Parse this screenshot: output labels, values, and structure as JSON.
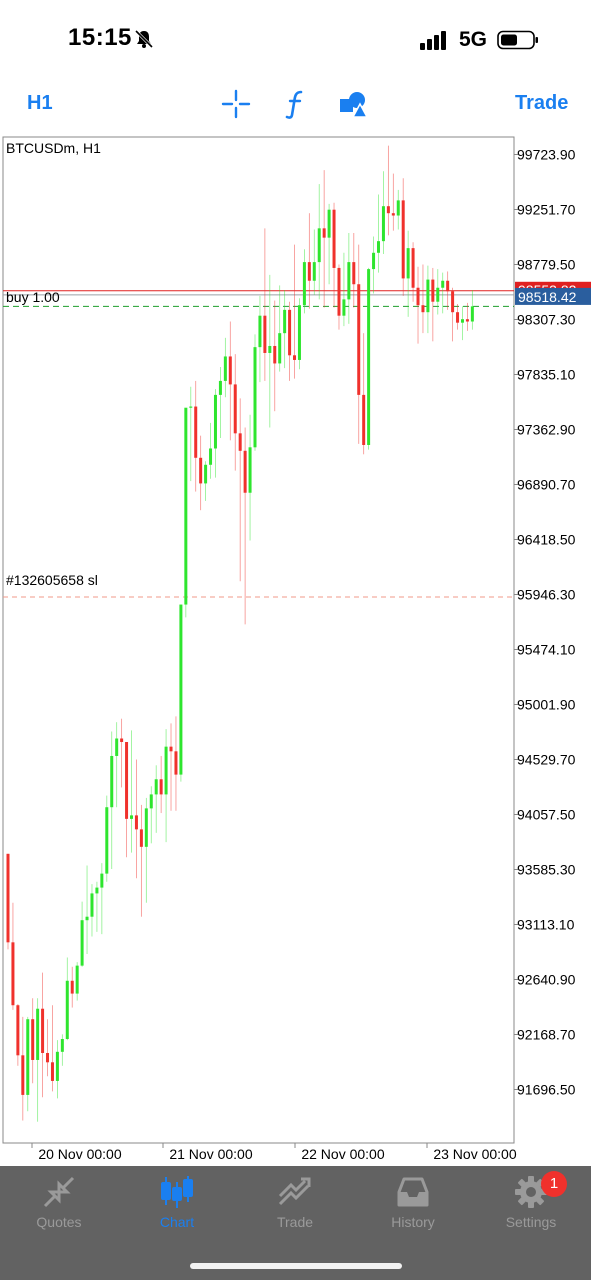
{
  "status_bar": {
    "time": "15:15",
    "network": "5G"
  },
  "toolbar": {
    "timeframe": "H1",
    "trade_label": "Trade",
    "tools": [
      "crosshair-icon",
      "indicator-icon",
      "objects-icon"
    ]
  },
  "chart": {
    "symbol_label": "BTCUSDm, H1",
    "bid_label": "98518.42",
    "ask_label": "98553.82",
    "position_label": "buy 1.00",
    "sl_label": "#132605658 sl",
    "price_ticks": [
      "99723.90",
      "99251.70",
      "98779.50",
      "98307.30",
      "97835.10",
      "97362.90",
      "96890.70",
      "96418.50",
      "95946.30",
      "95474.10",
      "95001.90",
      "94529.70",
      "94057.50",
      "93585.30",
      "93113.10",
      "92640.90",
      "92168.70",
      "91696.50"
    ],
    "time_ticks": [
      "20 Nov 00:00",
      "21 Nov 00:00",
      "22 Nov 00:00",
      "23 Nov 00:00"
    ]
  },
  "chart_data": {
    "type": "candlestick",
    "symbol": "BTCUSDm",
    "timeframe": "H1",
    "x_range": [
      "19 Nov 17:00",
      "23 Nov 05:00"
    ],
    "y_range": [
      91250,
      100050
    ],
    "levels": {
      "bid": 98518.42,
      "ask": 98553.82,
      "position_open_buy": 98420.0,
      "stop_loss": 95925.0
    },
    "ohlc": [
      {
        "o": 93720,
        "h": 93720,
        "l": 92900,
        "c": 92960
      },
      {
        "o": 92960,
        "h": 93300,
        "l": 92380,
        "c": 92420
      },
      {
        "o": 92420,
        "h": 92430,
        "l": 91900,
        "c": 91990
      },
      {
        "o": 91990,
        "h": 92320,
        "l": 91430,
        "c": 91650
      },
      {
        "o": 91650,
        "h": 92320,
        "l": 91510,
        "c": 92300
      },
      {
        "o": 92300,
        "h": 92480,
        "l": 91750,
        "c": 91950
      },
      {
        "o": 91950,
        "h": 92480,
        "l": 91420,
        "c": 92390
      },
      {
        "o": 92390,
        "h": 92700,
        "l": 91630,
        "c": 92010
      },
      {
        "o": 92010,
        "h": 92300,
        "l": 91810,
        "c": 91930
      },
      {
        "o": 91930,
        "h": 92420,
        "l": 91680,
        "c": 91770
      },
      {
        "o": 91770,
        "h": 92120,
        "l": 91620,
        "c": 92020
      },
      {
        "o": 92020,
        "h": 92170,
        "l": 91900,
        "c": 92130
      },
      {
        "o": 92130,
        "h": 92830,
        "l": 92120,
        "c": 92630
      },
      {
        "o": 92630,
        "h": 92750,
        "l": 92400,
        "c": 92520
      },
      {
        "o": 92520,
        "h": 92790,
        "l": 92460,
        "c": 92760
      },
      {
        "o": 92760,
        "h": 93310,
        "l": 92750,
        "c": 93150
      },
      {
        "o": 93150,
        "h": 93620,
        "l": 92860,
        "c": 93180
      },
      {
        "o": 93180,
        "h": 93460,
        "l": 93010,
        "c": 93380
      },
      {
        "o": 93380,
        "h": 93480,
        "l": 93050,
        "c": 93430
      },
      {
        "o": 93430,
        "h": 93640,
        "l": 93030,
        "c": 93550
      },
      {
        "o": 93550,
        "h": 94220,
        "l": 93480,
        "c": 94120
      },
      {
        "o": 94120,
        "h": 94770,
        "l": 93590,
        "c": 94560
      },
      {
        "o": 94560,
        "h": 94850,
        "l": 94120,
        "c": 94710
      },
      {
        "o": 94710,
        "h": 94880,
        "l": 94290,
        "c": 94680
      },
      {
        "o": 94680,
        "h": 94680,
        "l": 93690,
        "c": 94020
      },
      {
        "o": 94020,
        "h": 94780,
        "l": 93730,
        "c": 94050
      },
      {
        "o": 94050,
        "h": 94530,
        "l": 93510,
        "c": 93930
      },
      {
        "o": 93930,
        "h": 94140,
        "l": 93180,
        "c": 93780
      },
      {
        "o": 93780,
        "h": 94200,
        "l": 93300,
        "c": 94110
      },
      {
        "o": 94110,
        "h": 94300,
        "l": 93810,
        "c": 94230
      },
      {
        "o": 94230,
        "h": 94480,
        "l": 93900,
        "c": 94360
      },
      {
        "o": 94360,
        "h": 94560,
        "l": 94070,
        "c": 94230
      },
      {
        "o": 94230,
        "h": 94790,
        "l": 93820,
        "c": 94640
      },
      {
        "o": 94640,
        "h": 94840,
        "l": 94090,
        "c": 94600
      },
      {
        "o": 94600,
        "h": 94900,
        "l": 94090,
        "c": 94400
      },
      {
        "o": 94400,
        "h": 95840,
        "l": 94340,
        "c": 95860
      },
      {
        "o": 95860,
        "h": 97520,
        "l": 95750,
        "c": 97550
      },
      {
        "o": 97550,
        "h": 97730,
        "l": 96920,
        "c": 97560
      },
      {
        "o": 97560,
        "h": 97780,
        "l": 96830,
        "c": 97120
      },
      {
        "o": 97120,
        "h": 97310,
        "l": 96670,
        "c": 96900
      },
      {
        "o": 96900,
        "h": 97090,
        "l": 96750,
        "c": 97060
      },
      {
        "o": 97060,
        "h": 97420,
        "l": 96940,
        "c": 97200
      },
      {
        "o": 97200,
        "h": 97710,
        "l": 96950,
        "c": 97660
      },
      {
        "o": 97660,
        "h": 97900,
        "l": 97290,
        "c": 97780
      },
      {
        "o": 97780,
        "h": 98150,
        "l": 97640,
        "c": 97990
      },
      {
        "o": 97990,
        "h": 98290,
        "l": 97270,
        "c": 97750
      },
      {
        "o": 97750,
        "h": 98010,
        "l": 97010,
        "c": 97330
      },
      {
        "o": 97330,
        "h": 97630,
        "l": 96060,
        "c": 97180
      },
      {
        "o": 97180,
        "h": 97380,
        "l": 95690,
        "c": 96820
      },
      {
        "o": 96820,
        "h": 97490,
        "l": 96410,
        "c": 97210
      },
      {
        "o": 97210,
        "h": 98180,
        "l": 97180,
        "c": 98070
      },
      {
        "o": 98070,
        "h": 98510,
        "l": 97770,
        "c": 98340
      },
      {
        "o": 98340,
        "h": 99090,
        "l": 97780,
        "c": 98020
      },
      {
        "o": 98020,
        "h": 98690,
        "l": 97380,
        "c": 98080
      },
      {
        "o": 98080,
        "h": 98470,
        "l": 97520,
        "c": 97930
      },
      {
        "o": 97930,
        "h": 98600,
        "l": 97860,
        "c": 98190
      },
      {
        "o": 98190,
        "h": 98560,
        "l": 97890,
        "c": 98390
      },
      {
        "o": 98390,
        "h": 98460,
        "l": 97780,
        "c": 98000
      },
      {
        "o": 98000,
        "h": 98950,
        "l": 97800,
        "c": 97960
      },
      {
        "o": 97960,
        "h": 98490,
        "l": 97880,
        "c": 98430
      },
      {
        "o": 98430,
        "h": 98910,
        "l": 98360,
        "c": 98800
      },
      {
        "o": 98800,
        "h": 99220,
        "l": 98400,
        "c": 98640
      },
      {
        "o": 98640,
        "h": 99080,
        "l": 98520,
        "c": 98800
      },
      {
        "o": 98800,
        "h": 99470,
        "l": 98480,
        "c": 99090
      },
      {
        "o": 99090,
        "h": 99590,
        "l": 98410,
        "c": 99010
      },
      {
        "o": 99010,
        "h": 99300,
        "l": 98610,
        "c": 99250
      },
      {
        "o": 99250,
        "h": 99310,
        "l": 98410,
        "c": 98750
      },
      {
        "o": 98750,
        "h": 98780,
        "l": 98220,
        "c": 98340
      },
      {
        "o": 98340,
        "h": 98880,
        "l": 98250,
        "c": 98480
      },
      {
        "o": 98480,
        "h": 99050,
        "l": 98270,
        "c": 98800
      },
      {
        "o": 98800,
        "h": 99050,
        "l": 98410,
        "c": 98610
      },
      {
        "o": 98610,
        "h": 98950,
        "l": 97240,
        "c": 97660
      },
      {
        "o": 97660,
        "h": 98190,
        "l": 97150,
        "c": 97230
      },
      {
        "o": 97230,
        "h": 98750,
        "l": 97190,
        "c": 98740
      },
      {
        "o": 98740,
        "h": 99020,
        "l": 98530,
        "c": 98880
      },
      {
        "o": 98880,
        "h": 99380,
        "l": 98710,
        "c": 98980
      },
      {
        "o": 98980,
        "h": 99580,
        "l": 98870,
        "c": 99280
      },
      {
        "o": 99280,
        "h": 99800,
        "l": 99030,
        "c": 99220
      },
      {
        "o": 99220,
        "h": 99560,
        "l": 99070,
        "c": 99200
      },
      {
        "o": 99200,
        "h": 99420,
        "l": 99080,
        "c": 99330
      },
      {
        "o": 99330,
        "h": 99520,
        "l": 98510,
        "c": 98660
      },
      {
        "o": 98660,
        "h": 99070,
        "l": 98330,
        "c": 98920
      },
      {
        "o": 98920,
        "h": 98970,
        "l": 98460,
        "c": 98580
      },
      {
        "o": 98580,
        "h": 98760,
        "l": 98100,
        "c": 98430
      },
      {
        "o": 98430,
        "h": 98780,
        "l": 98190,
        "c": 98370
      },
      {
        "o": 98370,
        "h": 98770,
        "l": 98190,
        "c": 98650
      },
      {
        "o": 98650,
        "h": 98750,
        "l": 98120,
        "c": 98460
      },
      {
        "o": 98460,
        "h": 98740,
        "l": 98350,
        "c": 98580
      },
      {
        "o": 98580,
        "h": 98710,
        "l": 98360,
        "c": 98640
      },
      {
        "o": 98640,
        "h": 98720,
        "l": 98390,
        "c": 98550
      },
      {
        "o": 98550,
        "h": 98580,
        "l": 98120,
        "c": 98370
      },
      {
        "o": 98370,
        "h": 98440,
        "l": 98220,
        "c": 98280
      },
      {
        "o": 98280,
        "h": 98420,
        "l": 98130,
        "c": 98310
      },
      {
        "o": 98310,
        "h": 98450,
        "l": 98210,
        "c": 98290
      },
      {
        "o": 98290,
        "h": 98560,
        "l": 98220,
        "c": 98420
      }
    ]
  },
  "colors": {
    "bull": "#2ee52e",
    "bear": "#f0312c",
    "accent": "#1a7ff0",
    "tabbar": "#626262",
    "bid_box": "#2a5e9e",
    "ask_line": "#e02020"
  },
  "tabs": [
    {
      "label": "Quotes",
      "icon": "quotes-icon"
    },
    {
      "label": "Chart",
      "icon": "chart-icon"
    },
    {
      "label": "Trade",
      "icon": "trade-icon"
    },
    {
      "label": "History",
      "icon": "history-icon"
    },
    {
      "label": "Settings",
      "icon": "settings-icon"
    }
  ],
  "settings_badge": "1"
}
